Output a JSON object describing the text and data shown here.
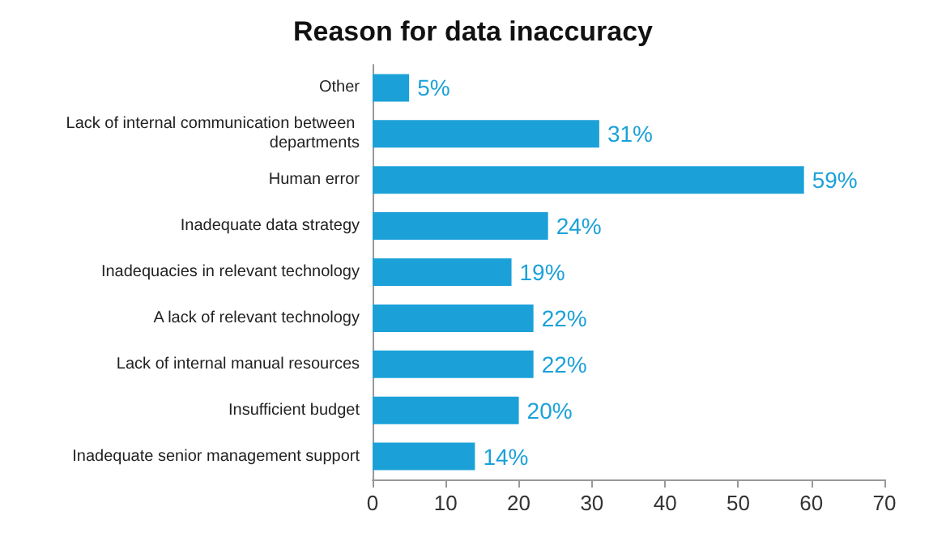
{
  "chart_data": {
    "type": "bar",
    "orientation": "horizontal",
    "title": "Reason for data inaccuracy",
    "categories": [
      "Other",
      "Lack of internal communication between departments",
      "Human error",
      "Inadequate data strategy",
      "Inadequacies in relevant technology",
      "A lack of relevant technology",
      "Lack of internal manual resources",
      "Insufficient budget",
      "Inadequate senior management support"
    ],
    "values": [
      5,
      31,
      59,
      24,
      19,
      22,
      22,
      20,
      14
    ],
    "value_labels": [
      "5%",
      "31%",
      "59%",
      "24%",
      "19%",
      "22%",
      "22%",
      "20%",
      "14%"
    ],
    "color": "#1ba1d8",
    "xlim": [
      0,
      70
    ],
    "xticks": [
      0,
      10,
      20,
      30,
      40,
      50,
      60,
      70
    ],
    "grid": false
  }
}
